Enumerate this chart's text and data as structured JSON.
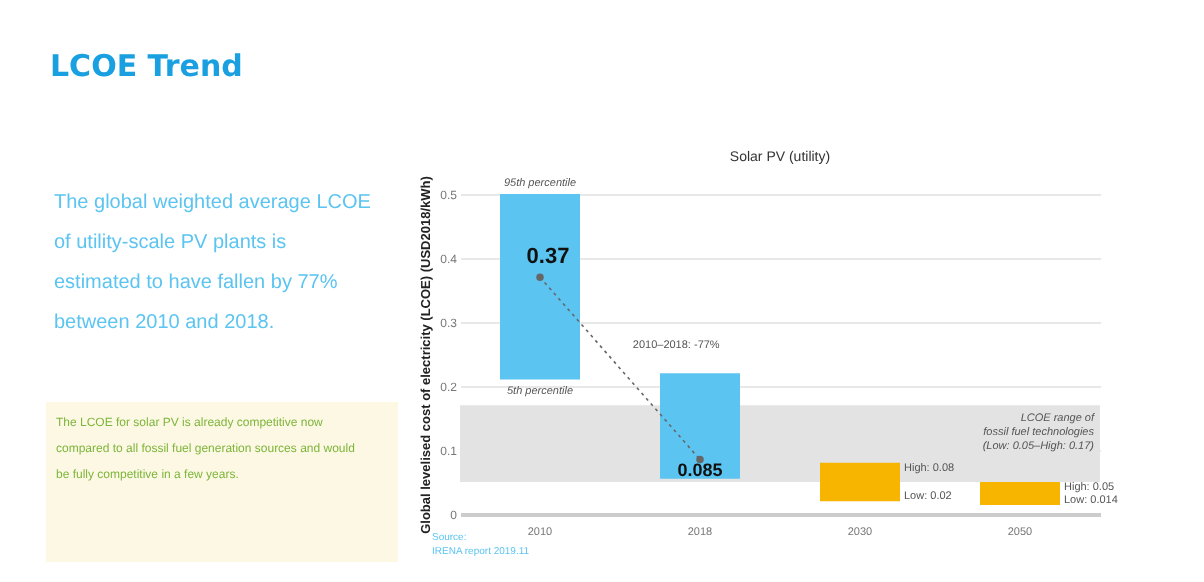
{
  "chart_data": {
    "type": "bar",
    "title": "LCOE Trend",
    "subtitle": "Solar PV (utility)",
    "ylabel": "Global levelised cost of electricity (LCOE) (USD2018/kWh)",
    "categories": [
      "2010",
      "2018",
      "2030",
      "2050"
    ],
    "series": [
      {
        "base": [
          0.21,
          0.055,
          0.02,
          0.014
        ],
        "values": [
          0.29,
          0.165,
          0.06,
          0.036
        ],
        "colors": [
          "#5bc4f1",
          "#5bc4f1",
          "#f7b500",
          "#f7b500"
        ]
      },
      {
        "type": "line",
        "values": [
          0.37,
          0.085,
          null,
          null
        ],
        "color": "#666666",
        "marker": "circle",
        "line_style": "dotted",
        "value_labels": [
          "0.37",
          "0.085",
          null,
          null
        ]
      }
    ],
    "ylim": [
      0,
      0.5
    ],
    "yticks": [
      0,
      0.1,
      0.2,
      0.3,
      0.4,
      0.5
    ],
    "grid": "y",
    "bands": [
      {
        "axis": "y",
        "from": 0.05,
        "to": 0.17,
        "color": "#e3e3e3",
        "label": "LCOE range of\nfossil fuel technologies\n(Low: 0.05–High: 0.17)"
      }
    ],
    "annotations": [
      "The global weighted average LCOE of utility-scale PV plants is estimated to have fallen by 77% between 2010 and 2018.",
      "The LCOE for solar PV is already competitive now compared to all fossil fuel generation sources and would be fully competitive in a few years.",
      "Source:",
      "IRENA report 2019.11",
      "2010–2018: -77%",
      "High: 0.08",
      "Low: 0.02",
      "High: 0.05",
      "Low: 0.014",
      {
        "text": "95th percentile",
        "x": "2010",
        "y": 0.5
      },
      {
        "text": "5th percentile",
        "x": "2010",
        "y": 0.21
      }
    ]
  }
}
